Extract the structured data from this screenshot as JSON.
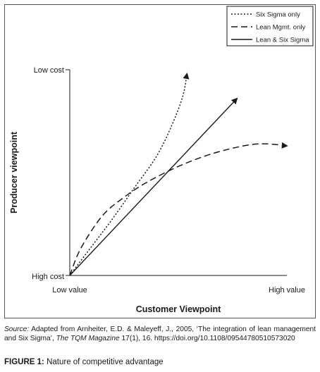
{
  "chart_data": {
    "type": "line",
    "xlabel": "Customer Viewpoint",
    "ylabel": "Producer viewpoint",
    "x_ticks": [
      "Low value",
      "High value"
    ],
    "y_ticks": [
      "High cost",
      "Low cost"
    ],
    "xlim": [
      0,
      1
    ],
    "ylim": [
      0,
      1
    ],
    "legend_position": "top-right",
    "series": [
      {
        "name": "Six Sigma only",
        "style": "dotted",
        "x": [
          0.0,
          0.1,
          0.2,
          0.3,
          0.4,
          0.47,
          0.52,
          0.54
        ],
        "y": [
          0.0,
          0.14,
          0.28,
          0.43,
          0.58,
          0.73,
          0.87,
          0.98
        ]
      },
      {
        "name": "Lean Mgmt. only",
        "style": "dashed",
        "x": [
          0.0,
          0.05,
          0.15,
          0.25,
          0.35,
          0.5,
          0.65,
          0.8,
          0.9,
          1.0
        ],
        "y": [
          0.0,
          0.13,
          0.29,
          0.38,
          0.45,
          0.53,
          0.59,
          0.63,
          0.64,
          0.63
        ]
      },
      {
        "name": "Lean & Six Sigma",
        "style": "solid",
        "x": [
          0.0,
          0.77
        ],
        "y": [
          0.0,
          0.86
        ]
      }
    ]
  },
  "source": {
    "lead": "Source:",
    "text_before": " Adapted from Arnheiter, E.D. & Maleyeff, J., 2005, ‘The integration of lean management and Six Sigma’, ",
    "journal": "The TQM Magazine",
    "text_after": " 17(1), 16. https://doi.org/10.1108/09544780510573020"
  },
  "caption": {
    "label": "FIGURE 1:",
    "text": " Nature of competitive advantage"
  },
  "colors": {
    "ink": "#1a1a1a",
    "frame": "#555555"
  }
}
